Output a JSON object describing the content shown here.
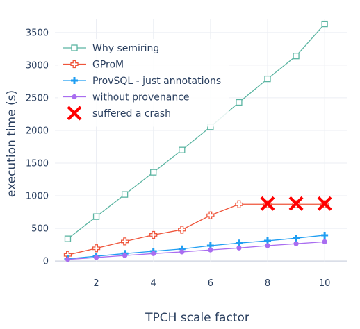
{
  "chart_data": {
    "type": "line",
    "xlabel": "TPCH scale factor",
    "ylabel": "execution time (s)",
    "xlim": [
      0.55,
      10.8
    ],
    "ylim": [
      -20,
      3700
    ],
    "xticks": [
      2,
      4,
      6,
      8,
      10
    ],
    "yticks": [
      0,
      500,
      1000,
      1500,
      2000,
      2500,
      3000,
      3500
    ],
    "grid": true,
    "legend_position": "top-left",
    "series": [
      {
        "name": "Why semiring",
        "color": "#5bb5a2",
        "marker": "square-open",
        "x": [
          1,
          2,
          3,
          4,
          5,
          6,
          7,
          8,
          9,
          10
        ],
        "y": [
          340,
          680,
          1020,
          1360,
          1700,
          2055,
          2430,
          2790,
          3140,
          3630
        ]
      },
      {
        "name": "GProM",
        "color": "#ef553b",
        "marker": "cross-open",
        "x": [
          1,
          2,
          3,
          4,
          5,
          6,
          7,
          8,
          9,
          10
        ],
        "y": [
          95,
          195,
          300,
          400,
          480,
          700,
          870,
          870,
          870,
          870
        ]
      },
      {
        "name": "ProvSQL - just annotations",
        "color": "#1f9ef2",
        "marker": "cross",
        "x": [
          1,
          2,
          3,
          4,
          5,
          6,
          7,
          8,
          9,
          10
        ],
        "y": [
          35,
          75,
          115,
          150,
          185,
          235,
          275,
          310,
          350,
          395
        ]
      },
      {
        "name": "without provenance",
        "color": "#a96df0",
        "marker": "circle",
        "x": [
          1,
          2,
          3,
          4,
          5,
          6,
          7,
          8,
          9,
          10
        ],
        "y": [
          25,
          55,
          85,
          115,
          140,
          170,
          200,
          235,
          265,
          295
        ]
      },
      {
        "name": "suffered a crash",
        "color": "#ff0000",
        "marker": "x",
        "x": [
          8,
          9,
          10
        ],
        "y": [
          880,
          880,
          880
        ]
      }
    ]
  }
}
